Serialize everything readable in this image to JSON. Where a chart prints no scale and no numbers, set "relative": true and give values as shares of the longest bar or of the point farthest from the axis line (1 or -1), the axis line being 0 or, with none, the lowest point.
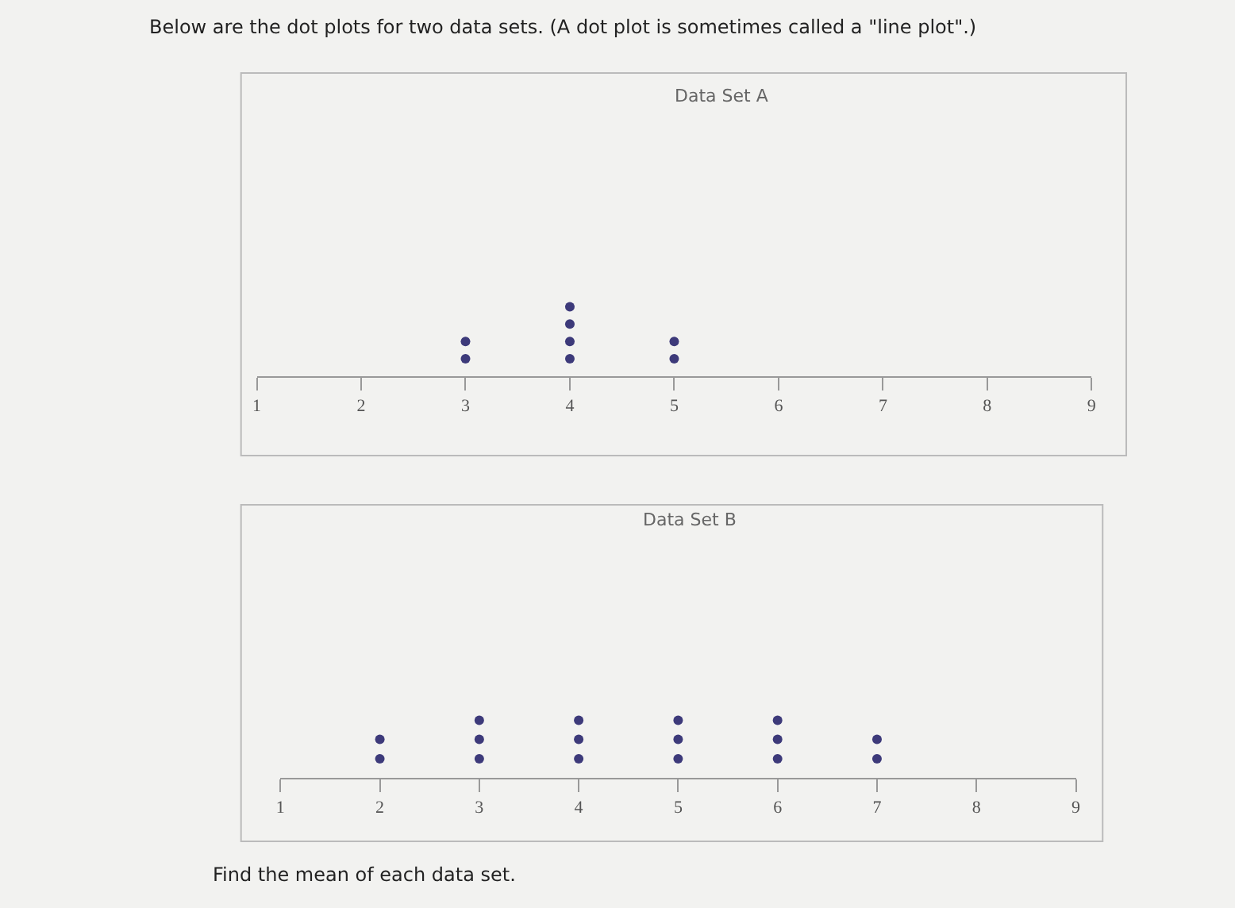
{
  "chart_data": [
    {
      "type": "scatter",
      "title": "Data Set A",
      "annotations": [
        "Below are the dot plots for two data sets. (A dot plot is sometimes called a \"line plot\".)"
      ],
      "x": [
        3,
        3,
        4,
        4,
        4,
        4,
        5,
        5
      ],
      "values": [
        0.25,
        0.5,
        0.25,
        0.5,
        0.75,
        1,
        0.25,
        0.5
      ],
      "relative": true,
      "color": "#3d3a7a",
      "marker": "circle",
      "grid": false,
      "tick_labels": "x",
      "xlim": [
        1,
        9
      ],
      "xticks": [
        1,
        2,
        3,
        4,
        5,
        6,
        7,
        8,
        9
      ]
    },
    {
      "type": "scatter",
      "title": "Data Set B",
      "annotations": [
        "Find the mean of each data set."
      ],
      "x": [
        2,
        2,
        3,
        3,
        3,
        4,
        4,
        4,
        5,
        5,
        5,
        6,
        6,
        6,
        7,
        7
      ],
      "values": [
        0.33,
        0.67,
        0.33,
        0.67,
        1,
        0.33,
        0.67,
        1,
        0.33,
        0.67,
        1,
        0.33,
        0.67,
        1,
        0.33,
        0.67
      ],
      "relative": true,
      "color": "#3d3a7a",
      "marker": "circle",
      "grid": false,
      "tick_labels": "x",
      "xlim": [
        1,
        9
      ],
      "xticks": [
        1,
        2,
        3,
        4,
        5,
        6,
        7,
        8,
        9
      ]
    }
  ]
}
